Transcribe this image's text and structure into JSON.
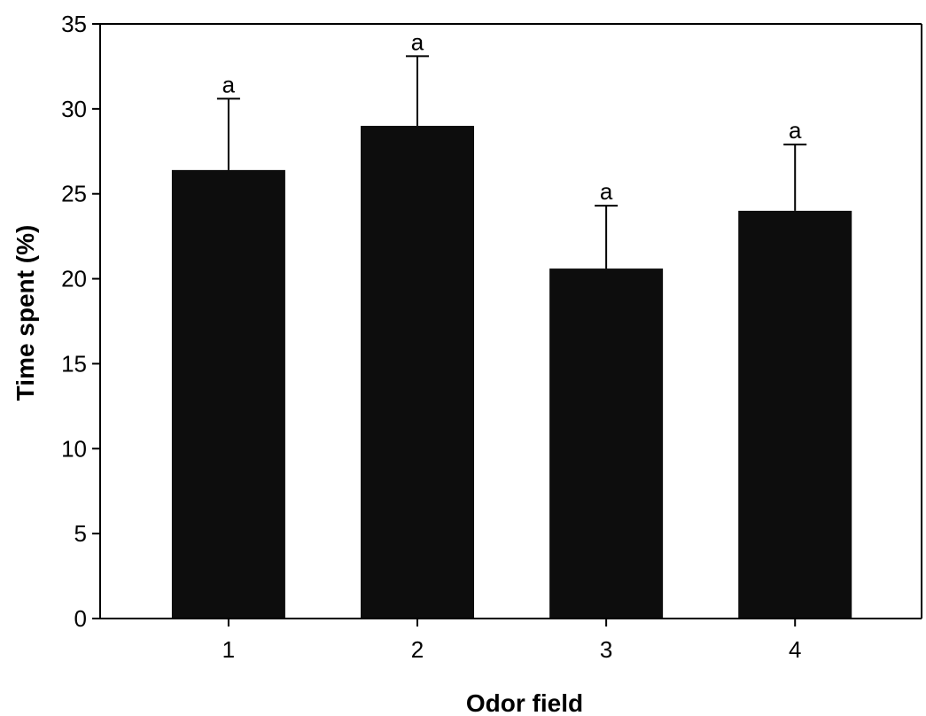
{
  "chart_data": {
    "type": "bar",
    "title": "",
    "xlabel": "Odor field",
    "ylabel": "Time spent (%)",
    "categories": [
      "1",
      "2",
      "3",
      "4"
    ],
    "values": [
      26.4,
      29.0,
      20.6,
      24.0
    ],
    "errors": [
      4.2,
      4.1,
      3.7,
      3.9
    ],
    "significance": [
      "a",
      "a",
      "a",
      "a"
    ],
    "ylim": [
      0,
      35
    ],
    "yticks": [
      "0",
      "5",
      "10",
      "15",
      "20",
      "25",
      "30",
      "35"
    ],
    "grid": false,
    "legend": "none",
    "bar_color": "#0d0d0d"
  }
}
